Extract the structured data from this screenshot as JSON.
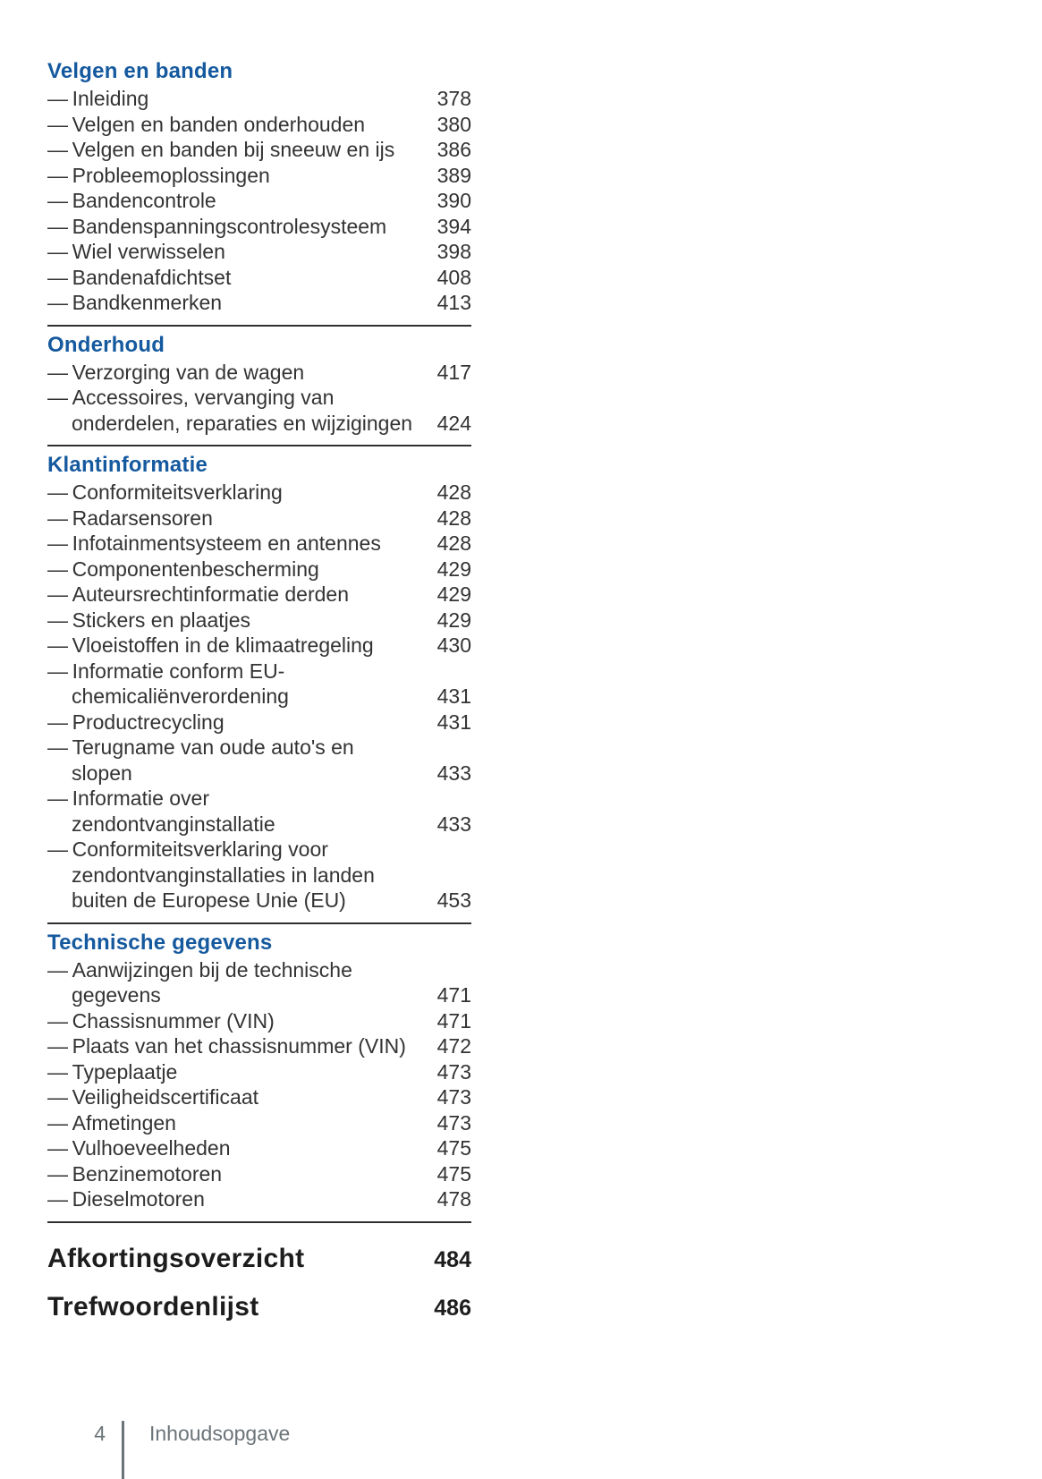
{
  "theme": {
    "accent_color": "#15599e",
    "text_color": "#333333",
    "heading_color": "#1d1d1d",
    "rule_color": "#303030",
    "muted_color": "#6b7479",
    "item_bullet": "—"
  },
  "sections": [
    {
      "title": "Velgen en banden",
      "items": [
        {
          "lines": [
            "Inleiding"
          ],
          "page": "378"
        },
        {
          "lines": [
            "Velgen en banden onderhouden"
          ],
          "page": "380"
        },
        {
          "lines": [
            "Velgen en banden bij sneeuw en ijs"
          ],
          "page": "386"
        },
        {
          "lines": [
            "Probleemoplossingen"
          ],
          "page": "389"
        },
        {
          "lines": [
            "Bandencontrole"
          ],
          "page": "390"
        },
        {
          "lines": [
            "Bandenspanningscontrolesysteem"
          ],
          "page": "394"
        },
        {
          "lines": [
            "Wiel verwisselen"
          ],
          "page": "398"
        },
        {
          "lines": [
            "Bandenafdichtset"
          ],
          "page": "408"
        },
        {
          "lines": [
            "Bandkenmerken"
          ],
          "page": "413"
        }
      ]
    },
    {
      "title": "Onderhoud",
      "items": [
        {
          "lines": [
            "Verzorging van de wagen"
          ],
          "page": "417"
        },
        {
          "lines": [
            "Accessoires, vervanging van",
            "onderdelen, reparaties en wijzigingen"
          ],
          "page": "424"
        }
      ]
    },
    {
      "title": "Klantinformatie",
      "items": [
        {
          "lines": [
            "Conformiteitsverklaring"
          ],
          "page": "428"
        },
        {
          "lines": [
            "Radarsensoren"
          ],
          "page": "428"
        },
        {
          "lines": [
            "Infotainmentsysteem en antennes"
          ],
          "page": "428"
        },
        {
          "lines": [
            "Componentenbescherming"
          ],
          "page": "429"
        },
        {
          "lines": [
            "Auteursrechtinformatie derden"
          ],
          "page": "429"
        },
        {
          "lines": [
            "Stickers en plaatjes"
          ],
          "page": "429"
        },
        {
          "lines": [
            "Vloeistoffen in de klimaatregeling"
          ],
          "page": "430"
        },
        {
          "lines": [
            "Informatie conform EU-",
            "chemicaliënverordening"
          ],
          "page": "431"
        },
        {
          "lines": [
            "Productrecycling"
          ],
          "page": "431"
        },
        {
          "lines": [
            "Terugname van oude auto's en",
            "slopen"
          ],
          "page": "433"
        },
        {
          "lines": [
            "Informatie over",
            "zendontvanginstallatie"
          ],
          "page": "433"
        },
        {
          "lines": [
            "Conformiteitsverklaring voor",
            "zendontvanginstallaties in landen",
            "buiten de Europese Unie (EU)"
          ],
          "page": "453"
        }
      ]
    },
    {
      "title": "Technische gegevens",
      "items": [
        {
          "lines": [
            "Aanwijzingen bij de technische",
            "gegevens"
          ],
          "page": "471"
        },
        {
          "lines": [
            "Chassisnummer (VIN)"
          ],
          "page": "471"
        },
        {
          "lines": [
            "Plaats van het chassisnummer (VIN)"
          ],
          "page": "472"
        },
        {
          "lines": [
            "Typeplaatje"
          ],
          "page": "473"
        },
        {
          "lines": [
            "Veiligheidscertificaat"
          ],
          "page": "473"
        },
        {
          "lines": [
            "Afmetingen"
          ],
          "page": "473"
        },
        {
          "lines": [
            "Vulhoeveelheden"
          ],
          "page": "475"
        },
        {
          "lines": [
            "Benzinemotoren"
          ],
          "page": "475"
        },
        {
          "lines": [
            "Dieselmotoren"
          ],
          "page": "478"
        }
      ]
    }
  ],
  "standalone_entries": [
    {
      "title": "Afkortingsoverzicht",
      "page": "484"
    },
    {
      "title": "Trefwoordenlijst",
      "page": "486"
    }
  ],
  "footer": {
    "page_number": "4",
    "label": "Inhoudsopgave"
  }
}
